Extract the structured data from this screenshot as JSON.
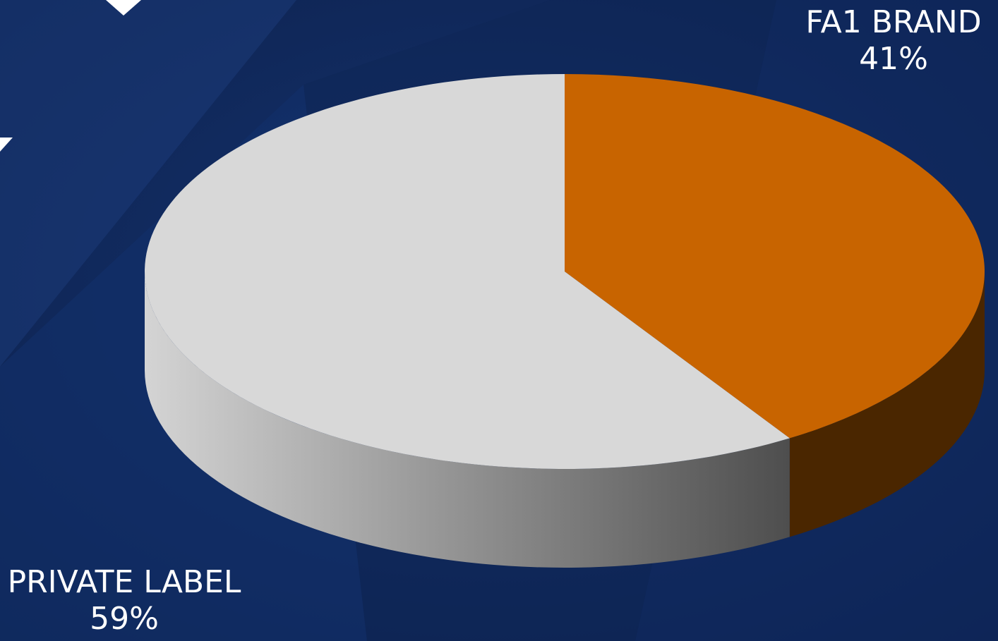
{
  "chart_data": {
    "type": "pie",
    "style": "3d",
    "slices": [
      {
        "name": "FA1 BRAND",
        "value": 41,
        "label": "41%",
        "color": "#c86400",
        "side_color": "#4a2600"
      },
      {
        "name": "PRIVATE LABEL",
        "value": 59,
        "label": "59%",
        "color": "#d8d8d8",
        "side_color": "#9a9a9a"
      }
    ]
  },
  "background_color": "#0f2a5c"
}
